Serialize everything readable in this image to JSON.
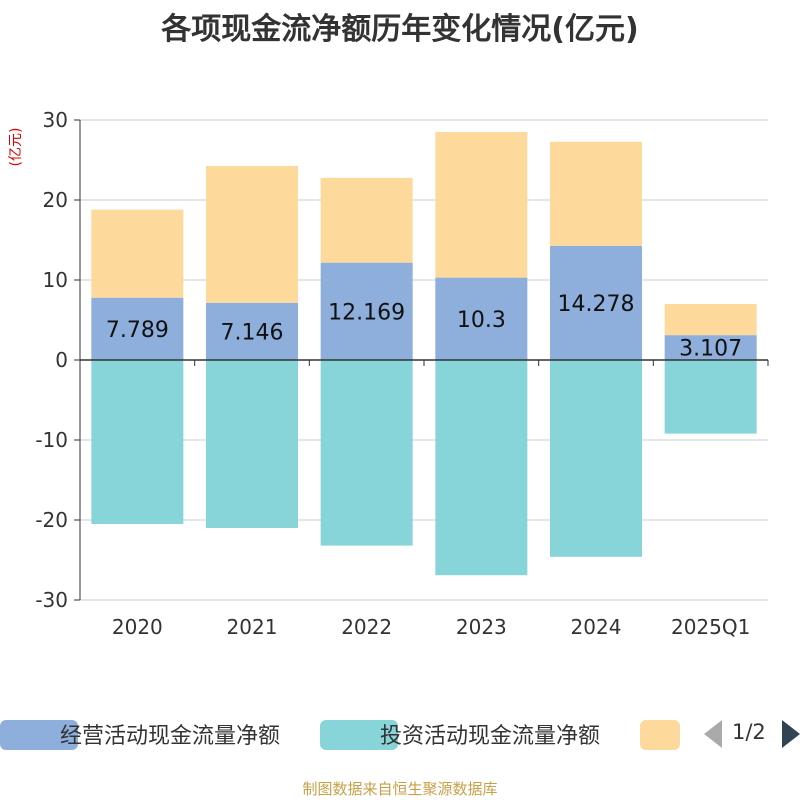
{
  "chart_data": {
    "type": "bar",
    "stacked": true,
    "title": "各项现金流净额历年变化情况(亿元)",
    "ylabel": "(亿元)",
    "ylim": [
      -30,
      30
    ],
    "yticks": [
      30,
      20,
      10,
      0,
      -10,
      -20,
      -30
    ],
    "categories": [
      "2020",
      "2021",
      "2022",
      "2023",
      "2024",
      "2025Q1"
    ],
    "series": [
      {
        "name": "经营活动现金流量净额",
        "color": "#8eaedb",
        "labeled": true,
        "values": [
          7.789,
          7.146,
          12.169,
          10.3,
          14.278,
          3.107
        ],
        "labels": [
          "7.789",
          "7.146",
          "12.169",
          "10.3",
          "14.278",
          "3.107"
        ]
      },
      {
        "name": "投资活动现金流量净额",
        "color": "#87d5d8",
        "labeled": false,
        "values": [
          -20.5,
          -21.0,
          -23.2,
          -26.9,
          -24.6,
          -9.2
        ]
      },
      {
        "name": "",
        "color": "#fdd99b",
        "labeled": false,
        "values": [
          11.0,
          17.1,
          10.6,
          18.2,
          13.0,
          3.9
        ]
      }
    ],
    "legend_position": "bottom"
  },
  "legend": {
    "page": "1/2"
  },
  "source_note": "制图数据来自恒生聚源数据库"
}
